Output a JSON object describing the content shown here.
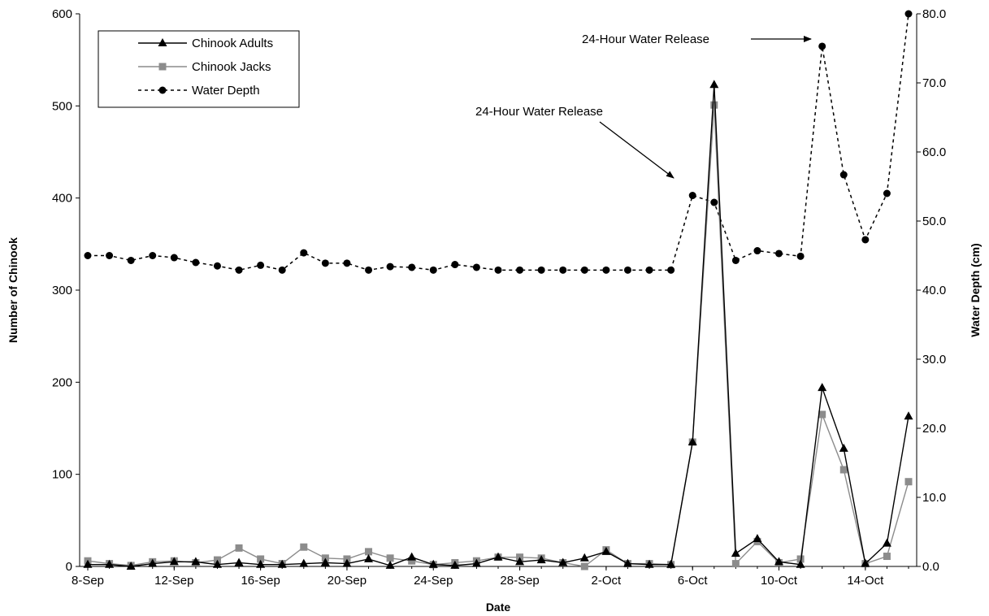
{
  "chart_data": {
    "type": "line",
    "xlabel": "Date",
    "ylabel": "Number of Chinook",
    "y2label": "Water Depth (cm)",
    "ylim": [
      0,
      600
    ],
    "y2lim": [
      0,
      80
    ],
    "y_ticks": [
      0,
      100,
      200,
      300,
      400,
      500,
      600
    ],
    "y2_ticks": [
      "0.0",
      "10.0",
      "20.0",
      "30.0",
      "40.0",
      "50.0",
      "60.0",
      "70.0",
      "80.0"
    ],
    "x_tick_labels": [
      "8-Sep",
      "12-Sep",
      "16-Sep",
      "20-Sep",
      "24-Sep",
      "28-Sep",
      "2-Oct",
      "6-Oct",
      "10-Oct",
      "14-Oct"
    ],
    "x": [
      "8-Sep",
      "9-Sep",
      "10-Sep",
      "11-Sep",
      "12-Sep",
      "13-Sep",
      "14-Sep",
      "15-Sep",
      "16-Sep",
      "17-Sep",
      "18-Sep",
      "19-Sep",
      "20-Sep",
      "21-Sep",
      "22-Sep",
      "23-Sep",
      "24-Sep",
      "25-Sep",
      "26-Sep",
      "27-Sep",
      "28-Sep",
      "29-Sep",
      "30-Sep",
      "1-Oct",
      "2-Oct",
      "3-Oct",
      "4-Oct",
      "5-Oct",
      "6-Oct",
      "7-Oct",
      "8-Oct",
      "9-Oct",
      "10-Oct",
      "11-Oct",
      "12-Oct",
      "13-Oct",
      "14-Oct",
      "15-Oct",
      "16-Oct"
    ],
    "legend_position": "top-left",
    "series": [
      {
        "name": "Chinook Adults",
        "axis": "left",
        "marker": "triangle",
        "color": "#000000",
        "values": [
          2,
          2,
          0,
          3,
          5,
          5,
          2,
          4,
          2,
          2,
          3,
          4,
          3,
          8,
          1,
          10,
          2,
          1,
          3,
          10,
          5,
          7,
          4,
          9,
          16,
          3,
          2,
          2,
          135,
          523,
          14,
          30,
          5,
          2,
          194,
          128,
          3,
          25,
          163
        ]
      },
      {
        "name": "Chinook Jacks",
        "axis": "left",
        "marker": "square",
        "color": "#8c8c8c",
        "values": [
          6,
          3,
          1,
          5,
          6,
          4,
          7,
          20,
          8,
          3,
          21,
          9,
          8,
          16,
          9,
          6,
          2,
          4,
          6,
          10,
          10,
          9,
          4,
          0,
          18,
          3,
          3,
          2,
          135,
          501,
          3,
          27,
          4,
          8,
          165,
          105,
          3,
          11,
          92
        ]
      },
      {
        "name": "Water Depth",
        "axis": "right",
        "marker": "circle",
        "color": "#000000",
        "dashed": true,
        "values": [
          45.0,
          45.0,
          44.3,
          45.0,
          44.7,
          44.0,
          43.5,
          42.9,
          43.6,
          42.9,
          45.4,
          43.9,
          43.9,
          42.9,
          43.4,
          43.3,
          42.9,
          43.7,
          43.3,
          42.9,
          42.9,
          42.9,
          42.9,
          42.9,
          42.9,
          42.9,
          42.9,
          42.9,
          53.7,
          52.7,
          44.3,
          45.7,
          45.3,
          44.9,
          75.3,
          56.7,
          47.3,
          54.0,
          80.0
        ]
      }
    ],
    "annotations": [
      {
        "text": "24-Hour Water Release",
        "target_index": 27
      },
      {
        "text": "24-Hour Water Release",
        "target_index": 33
      }
    ],
    "grid": false
  }
}
